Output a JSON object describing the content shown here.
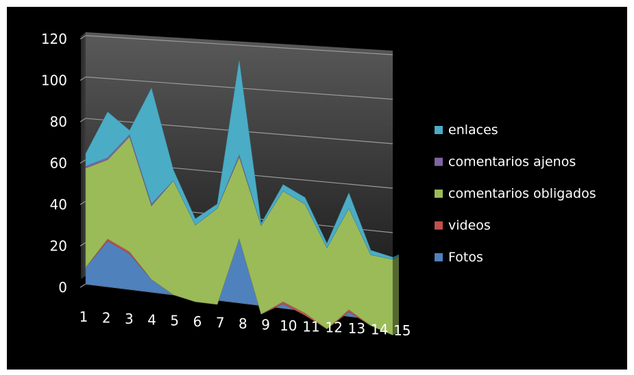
{
  "chart_data": {
    "type": "area",
    "title": "",
    "xlabel": "",
    "ylabel": "",
    "stacked": true,
    "perspective_3d": true,
    "categories": [
      "1",
      "2",
      "3",
      "4",
      "5",
      "6",
      "7",
      "8",
      "9",
      "10",
      "11",
      "12",
      "13",
      "14",
      "15"
    ],
    "ylim": [
      0,
      120
    ],
    "yticks": [
      "0",
      "20",
      "40",
      "60",
      "80",
      "100",
      "120"
    ],
    "grid": true,
    "legend_position": "right",
    "series": [
      {
        "name": "Fotos",
        "color": "#4f81bd",
        "values": [
          8,
          22,
          17,
          6,
          0,
          -2,
          -2,
          30,
          -4,
          2,
          -2,
          -7,
          2,
          -3,
          -6
        ]
      },
      {
        "name": "videos",
        "color": "#c0504d",
        "values": [
          0,
          1,
          1,
          0,
          0,
          0,
          0,
          0,
          0,
          1,
          1,
          0,
          1,
          0,
          0
        ]
      },
      {
        "name": "comentarios obligados",
        "color": "#9bbb59",
        "values": [
          48,
          38,
          55,
          35,
          54,
          36,
          45,
          38,
          41,
          51,
          50,
          37,
          46,
          32,
          34
        ]
      },
      {
        "name": "comentarios ajenos",
        "color": "#8064a2",
        "values": [
          1,
          1,
          1,
          1,
          0,
          0,
          0,
          1,
          0,
          0,
          0,
          0,
          0,
          0,
          0
        ]
      },
      {
        "name": "enlaces",
        "color": "#4bacc6",
        "values": [
          6,
          22,
          2,
          55,
          5,
          3,
          2,
          44,
          1,
          3,
          3,
          2,
          7,
          2,
          1
        ]
      }
    ]
  }
}
